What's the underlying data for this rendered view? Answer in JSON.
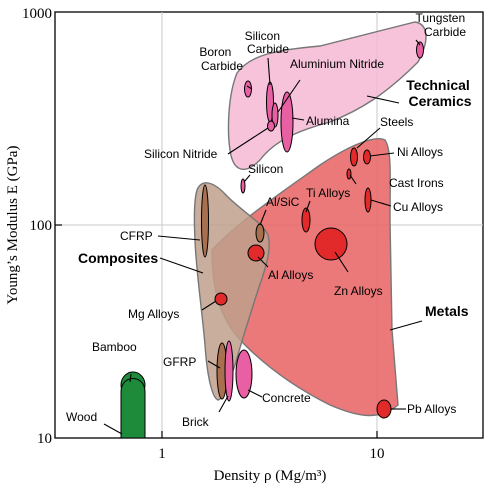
{
  "chart_data": {
    "type": "scatter",
    "title": "",
    "xlabel": "Density ρ (Mg/m³)",
    "ylabel": "Young’s Modulus E (GPa)",
    "x_scale": "log",
    "y_scale": "log",
    "xlim": [
      0.3,
      30
    ],
    "ylim": [
      10,
      1000
    ],
    "x_ticks": [
      "1",
      "10"
    ],
    "y_ticks": [
      "10",
      "100",
      "1000"
    ],
    "grid": true,
    "families": [
      {
        "name": "Technical Ceramics",
        "color": "#f4b9d3",
        "outline": [
          [
            2.4,
            600
          ],
          [
            3.1,
            750
          ],
          [
            7,
            830
          ],
          [
            15,
            860
          ],
          [
            16.8,
            820
          ],
          [
            16.5,
            640
          ],
          [
            11,
            430
          ],
          [
            7,
            330
          ],
          [
            4.5,
            260
          ],
          [
            3.2,
            210
          ],
          [
            2.4,
            170
          ],
          [
            2.1,
            230
          ],
          [
            2.1,
            400
          ]
        ]
      },
      {
        "name": "Metals",
        "color": "#ea6e6e",
        "outline": [
          [
            1.7,
            75
          ],
          [
            2.6,
            100
          ],
          [
            4.5,
            155
          ],
          [
            7,
            245
          ],
          [
            9.5,
            255
          ],
          [
            11,
            240
          ],
          [
            11.5,
            150
          ],
          [
            11.3,
            30
          ],
          [
            11,
            12.5
          ],
          [
            8,
            11.5
          ],
          [
            5,
            13
          ],
          [
            3,
            20
          ],
          [
            2,
            32
          ],
          [
            1.73,
            45
          ]
        ]
      },
      {
        "name": "Composites",
        "color": "#c1a08d",
        "outline": [
          [
            1.38,
            145
          ],
          [
            1.55,
            160
          ],
          [
            2.2,
            125
          ],
          [
            3.1,
            90
          ],
          [
            3,
            65
          ],
          [
            2.4,
            40
          ],
          [
            2,
            22
          ],
          [
            1.82,
            14
          ],
          [
            1.67,
            14
          ],
          [
            1.5,
            30
          ],
          [
            1.38,
            60
          ]
        ]
      }
    ],
    "materials": [
      {
        "name": "Tungsten Carbide",
        "x": 15.6,
        "y": 670
      },
      {
        "name": "Boron Carbide",
        "x": 2.5,
        "y": 445
      },
      {
        "name": "Silicon Carbide",
        "x": 3.2,
        "y": 410
      },
      {
        "name": "Aluminium Nitride",
        "x": 3.3,
        "y": 325
      },
      {
        "name": "Alumina",
        "x": 3.9,
        "y": 365
      },
      {
        "name": "Silicon Nitride",
        "x": 3.2,
        "y": 295
      },
      {
        "name": "Silicon",
        "x": 2.33,
        "y": 155
      },
      {
        "name": "Steels",
        "x": 7.8,
        "y": 210
      },
      {
        "name": "Ni Alloys",
        "x": 8.9,
        "y": 210
      },
      {
        "name": "Cast Irons",
        "x": 7.4,
        "y": 172
      },
      {
        "name": "Cu Alloys",
        "x": 8.9,
        "y": 135
      },
      {
        "name": "Ti Alloys",
        "x": 4.5,
        "y": 108
      },
      {
        "name": "Al/SiC",
        "x": 2.9,
        "y": 95
      },
      {
        "name": "Al Alloys",
        "x": 2.7,
        "y": 75
      },
      {
        "name": "Zn Alloys",
        "x": 6.0,
        "y": 82
      },
      {
        "name": "CFRP",
        "x": 1.55,
        "y": 100
      },
      {
        "name": "Mg Alloys",
        "x": 1.8,
        "y": 45
      },
      {
        "name": "Pb Alloys",
        "x": 11.3,
        "y": 14
      },
      {
        "name": "GFRP",
        "x": 1.83,
        "y": 20
      },
      {
        "name": "Brick",
        "x": 1.97,
        "y": 20
      },
      {
        "name": "Concrete",
        "x": 2.4,
        "y": 20
      },
      {
        "name": "Bamboo",
        "x": 0.7,
        "y": 18
      },
      {
        "name": "Wood",
        "x": 0.65,
        "y": 10
      }
    ]
  }
}
